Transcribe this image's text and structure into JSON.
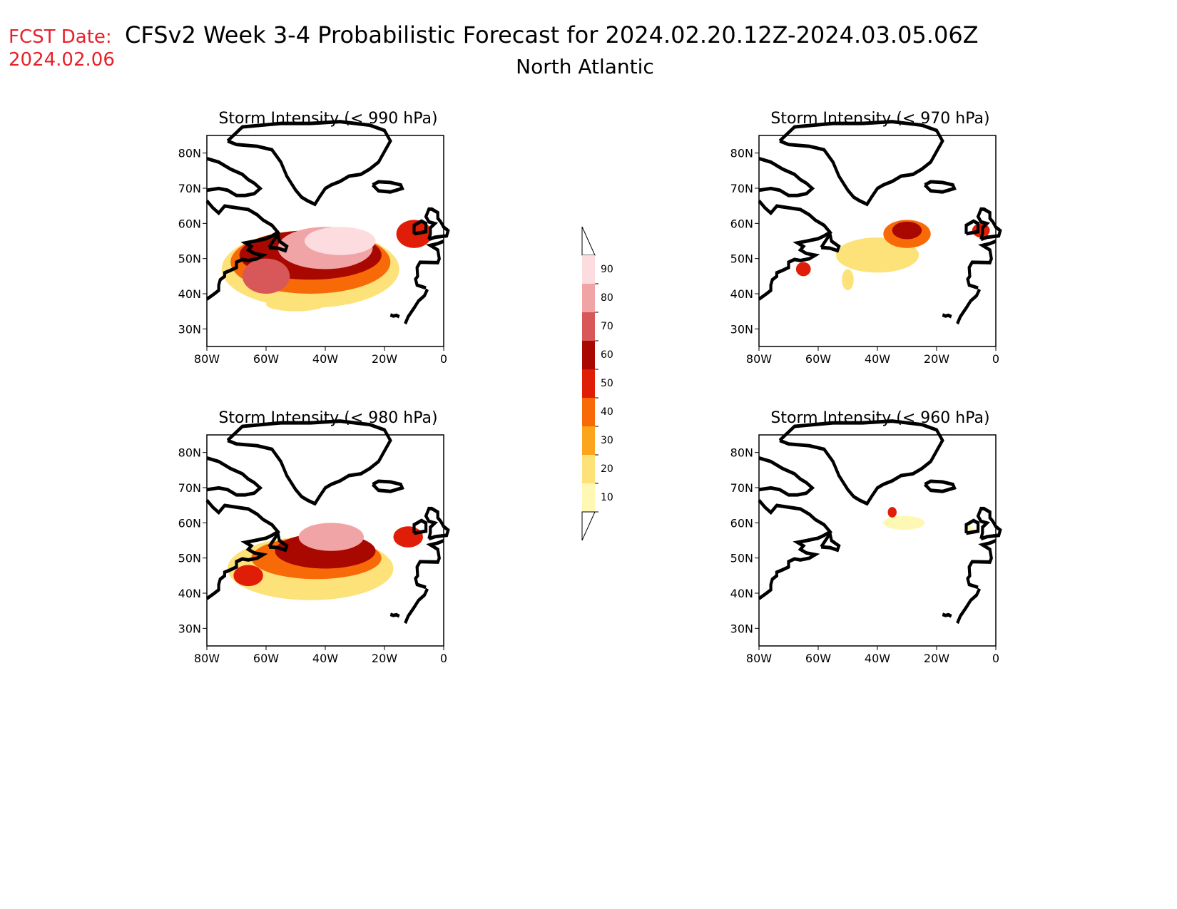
{
  "header": {
    "fcst_label": "FCST Date:",
    "fcst_date": "2024.02.06",
    "title": "CFSv2 Week 3-4 Probabilistic Forecast for 2024.02.20.12Z-2024.03.05.06Z",
    "subtitle": "North Atlantic"
  },
  "axes": {
    "lat_ticks": [
      "80N",
      "70N",
      "60N",
      "50N",
      "40N",
      "30N"
    ],
    "lat_values": [
      80,
      70,
      60,
      50,
      40,
      30
    ],
    "lon_ticks": [
      "80W",
      "60W",
      "40W",
      "20W",
      "0"
    ],
    "lon_values": [
      -80,
      -60,
      -40,
      -20,
      0
    ],
    "lon_range": [
      -80,
      0
    ],
    "lat_range": [
      25,
      85
    ]
  },
  "legend": {
    "labels": [
      "10",
      "20",
      "30",
      "40",
      "50",
      "60",
      "70",
      "80",
      "90"
    ],
    "values": [
      10,
      20,
      30,
      40,
      50,
      60,
      70,
      80,
      90
    ],
    "colors": [
      "#fff8b4",
      "#fde27a",
      "#fba41c",
      "#f86a08",
      "#e01e08",
      "#a80800",
      "#d8585a",
      "#f0a4a6",
      "#fcdcde"
    ]
  },
  "panels": [
    {
      "id": "p990",
      "title": "Storm Intensity (< 990 hPa)",
      "blobs": [
        {
          "lon": -45,
          "lat": 47,
          "rx": 30,
          "ry": 11,
          "level": 1
        },
        {
          "lon": -45,
          "lat": 49,
          "rx": 27,
          "ry": 9,
          "level": 3
        },
        {
          "lon": -45,
          "lat": 51,
          "rx": 24,
          "ry": 7,
          "level": 5
        },
        {
          "lon": -40,
          "lat": 53,
          "rx": 16,
          "ry": 6,
          "level": 7
        },
        {
          "lon": -35,
          "lat": 55,
          "rx": 12,
          "ry": 4,
          "level": 8
        },
        {
          "lon": -60,
          "lat": 45,
          "rx": 8,
          "ry": 5,
          "level": 6
        },
        {
          "lon": -10,
          "lat": 57,
          "rx": 6,
          "ry": 4,
          "level": 4
        },
        {
          "lon": -50,
          "lat": 37,
          "rx": 10,
          "ry": 2,
          "level": 1
        }
      ]
    },
    {
      "id": "p970",
      "title": "Storm Intensity (< 970 hPa)",
      "blobs": [
        {
          "lon": -40,
          "lat": 51,
          "rx": 14,
          "ry": 5,
          "level": 1
        },
        {
          "lon": -30,
          "lat": 57,
          "rx": 8,
          "ry": 4,
          "level": 3
        },
        {
          "lon": -30,
          "lat": 58,
          "rx": 5,
          "ry": 2.5,
          "level": 5
        },
        {
          "lon": -5,
          "lat": 58,
          "rx": 3,
          "ry": 2,
          "level": 4
        },
        {
          "lon": -65,
          "lat": 47,
          "rx": 2.5,
          "ry": 2,
          "level": 4
        },
        {
          "lon": -50,
          "lat": 44,
          "rx": 2,
          "ry": 3,
          "level": 1
        }
      ]
    },
    {
      "id": "p980",
      "title": "Storm Intensity (< 980 hPa)",
      "blobs": [
        {
          "lon": -45,
          "lat": 47,
          "rx": 28,
          "ry": 9,
          "level": 1
        },
        {
          "lon": -43,
          "lat": 50,
          "rx": 22,
          "ry": 6,
          "level": 3
        },
        {
          "lon": -40,
          "lat": 52,
          "rx": 17,
          "ry": 5,
          "level": 5
        },
        {
          "lon": -38,
          "lat": 56,
          "rx": 11,
          "ry": 4,
          "level": 7
        },
        {
          "lon": -66,
          "lat": 45,
          "rx": 5,
          "ry": 3,
          "level": 4
        },
        {
          "lon": -12,
          "lat": 56,
          "rx": 5,
          "ry": 3,
          "level": 4
        }
      ]
    },
    {
      "id": "p960",
      "title": "Storm Intensity (< 960 hPa)",
      "blobs": [
        {
          "lon": -31,
          "lat": 60,
          "rx": 7,
          "ry": 2,
          "level": 0
        },
        {
          "lon": -35,
          "lat": 63,
          "rx": 1.5,
          "ry": 1.5,
          "level": 4
        },
        {
          "lon": -9,
          "lat": 58,
          "rx": 1.5,
          "ry": 1.2,
          "level": 0
        }
      ]
    }
  ]
}
